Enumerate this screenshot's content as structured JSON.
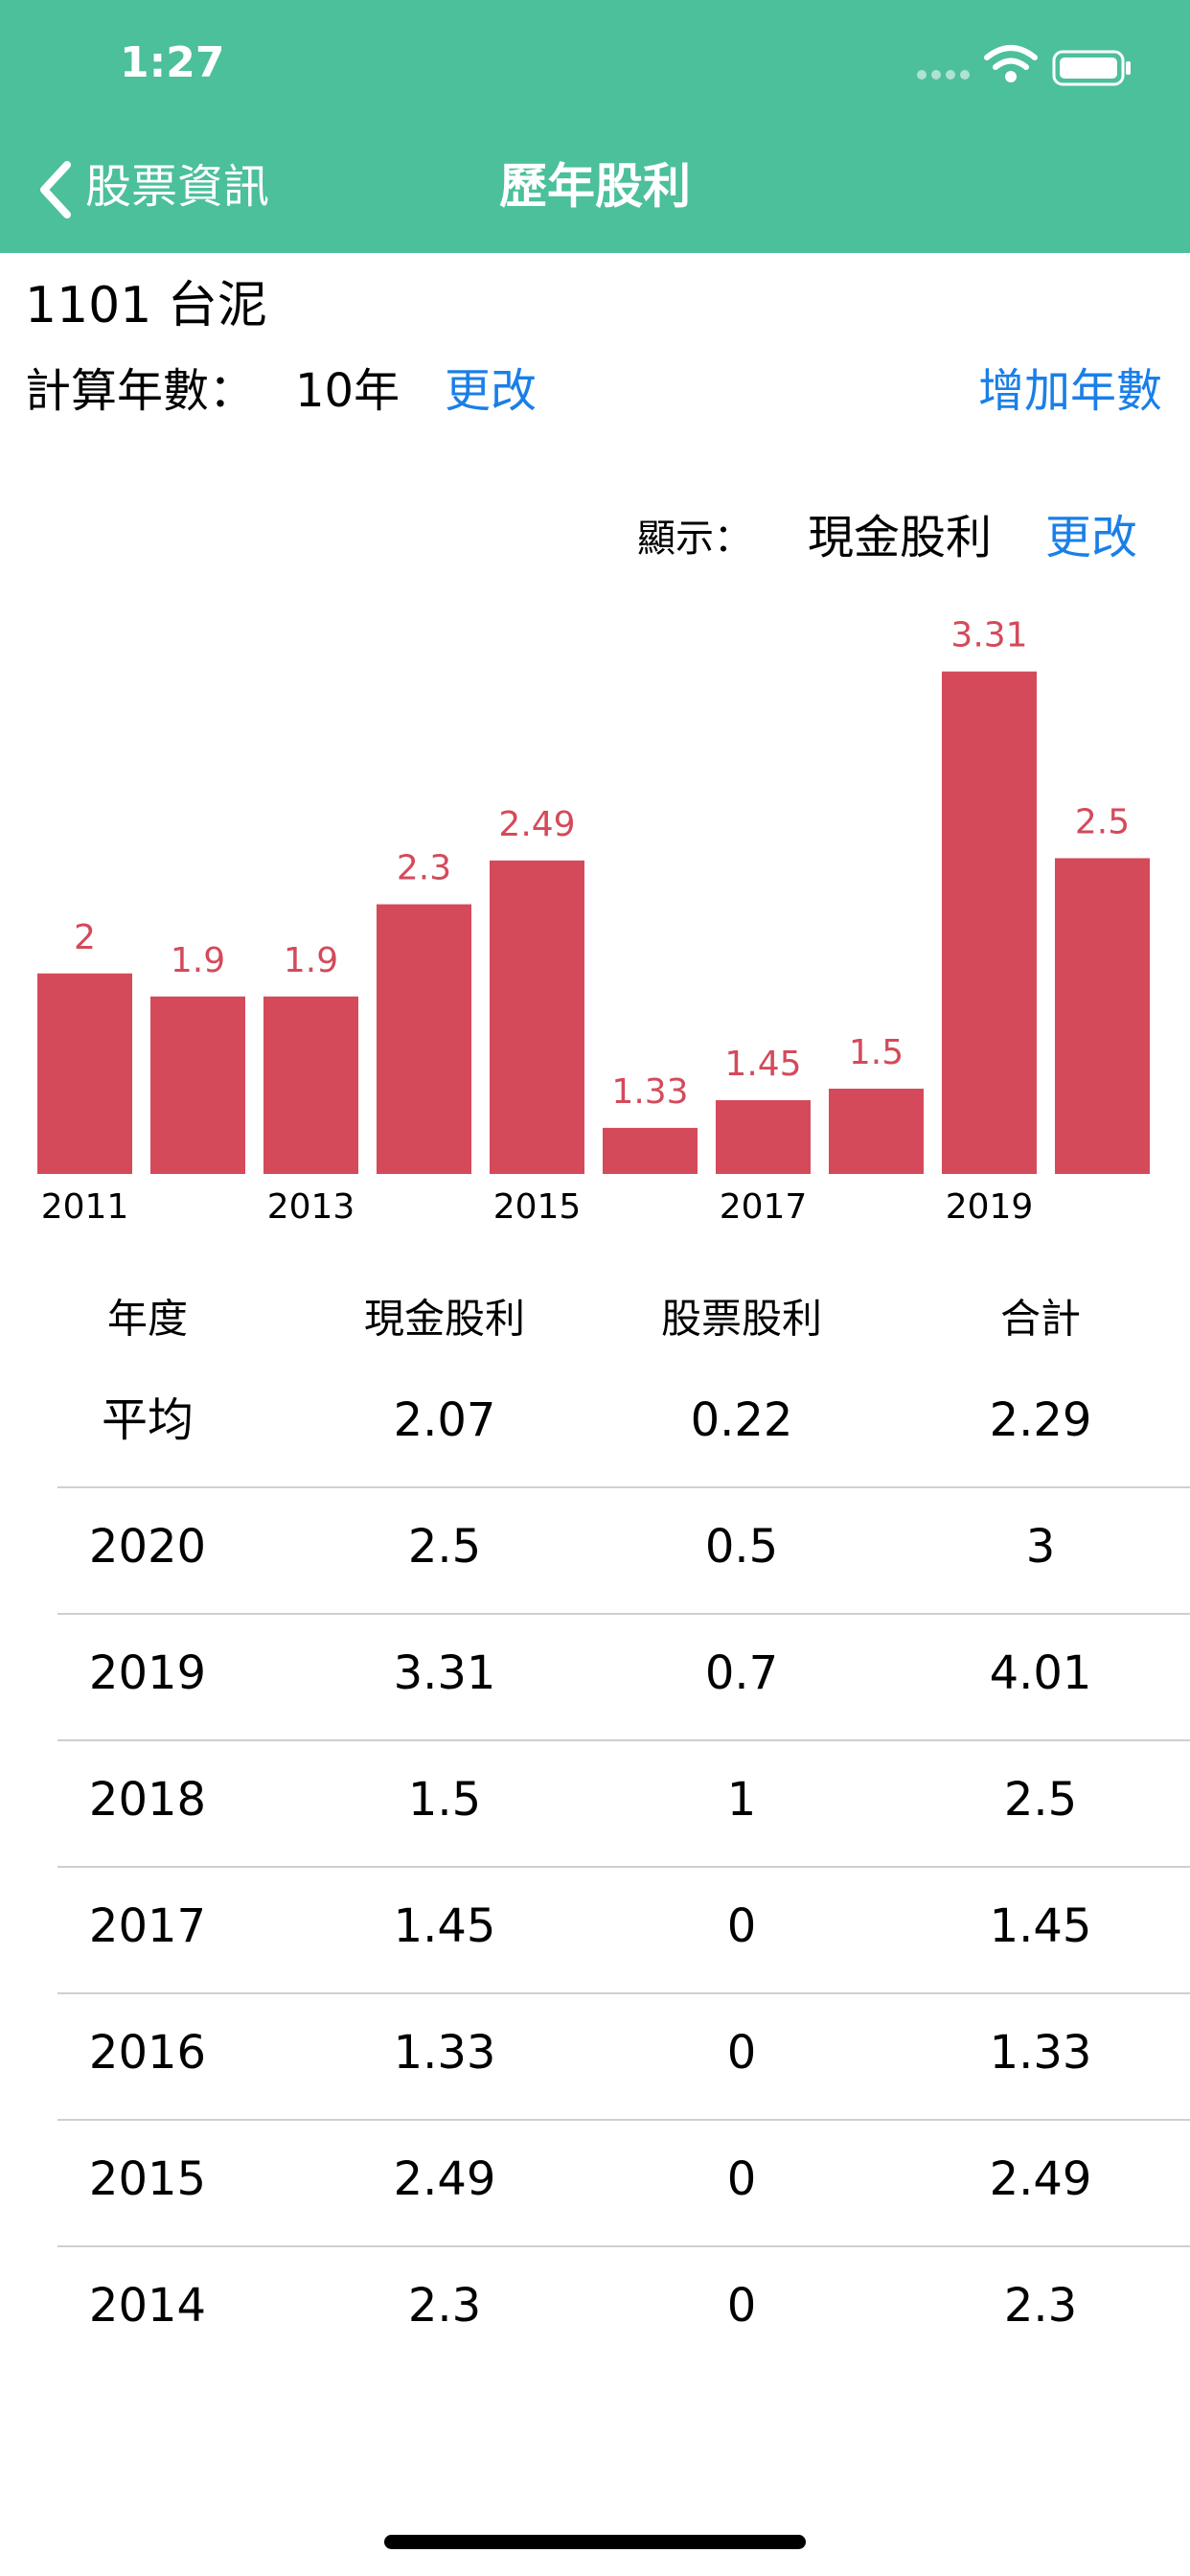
{
  "status_bar": {
    "time": "1:27"
  },
  "nav": {
    "back": "股票資訊",
    "title": "歷年股利"
  },
  "stock": {
    "name": "1101 台泥"
  },
  "settings": {
    "years_label": "計算年數：",
    "years_value": "10年",
    "change": "更改",
    "add_years": "增加年數"
  },
  "display": {
    "label": "顯示：",
    "value": "現金股利",
    "change": "更改"
  },
  "chart_data": {
    "type": "bar",
    "categories": [
      "2011",
      null,
      "2013",
      null,
      "2015",
      null,
      "2017",
      null,
      "2019",
      null
    ],
    "values": [
      2,
      1.9,
      1.9,
      2.3,
      2.49,
      1.33,
      1.45,
      1.5,
      3.31,
      2.5
    ],
    "color": "#d44a5a",
    "ylim": [
      1.13,
      3.45
    ]
  },
  "table": {
    "header": [
      "年度",
      "現金股利",
      "股票股利",
      "合計"
    ],
    "rows": [
      [
        "平均",
        "2.07",
        "0.22",
        "2.29"
      ],
      [
        "2020",
        "2.5",
        "0.5",
        "3"
      ],
      [
        "2019",
        "3.31",
        "0.7",
        "4.01"
      ],
      [
        "2018",
        "1.5",
        "1",
        "2.5"
      ],
      [
        "2017",
        "1.45",
        "0",
        "1.45"
      ],
      [
        "2016",
        "1.33",
        "0",
        "1.33"
      ],
      [
        "2015",
        "2.49",
        "0",
        "2.49"
      ],
      [
        "2014",
        "2.3",
        "0",
        "2.3"
      ]
    ]
  }
}
